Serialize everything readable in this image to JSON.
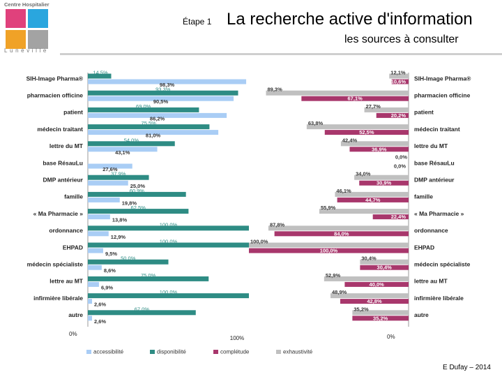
{
  "header": {
    "logo_title": "Centre Hospitalier",
    "logo_town": "Lunéville",
    "step_label": "Étape 1",
    "title": "La recherche active d'information",
    "subtitle": "les sources à consulter"
  },
  "colors": {
    "accessibilite": "#a9cdf5",
    "disponibilite": "#2e8c84",
    "completude": "#a8376c",
    "exhaustivite": "#c0c0c0",
    "logo_pink": "#e0417c",
    "logo_blue": "#2aa6de",
    "logo_orange": "#f0a227",
    "logo_gray": "#a3a3a3"
  },
  "chart_data": {
    "type": "bar",
    "orientation": "horizontal",
    "categories": [
      "SIH-Image Pharma®",
      "pharmacien officine",
      "patient",
      "médecin traitant",
      "lettre du MT",
      "base RésauLu",
      "DMP antérieur",
      "famille",
      "« Ma Pharmacie »",
      "ordonnance",
      "EHPAD",
      "médecin spécialiste",
      "lettre au MT",
      "infirmière libérale",
      "autre"
    ],
    "left_panel": {
      "axis_min_label": "0%",
      "axis_max_label": "100%",
      "xlim": [
        0,
        100
      ],
      "series": [
        {
          "name": "disponibilité",
          "key": "disponibilite",
          "values": [
            14.5,
            93.3,
            69.0,
            75.5,
            54.0,
            null,
            37.9,
            60.9,
            62.5,
            100.0,
            100.0,
            50.0,
            75.0,
            100.0,
            67.0
          ],
          "labels": [
            "14,5%",
            "93,3%",
            "69,0%",
            "75,5%",
            "54,0%",
            "",
            "37,9%",
            "60,9%",
            "62,5%",
            "100,0%",
            "100,0%",
            "50,0%",
            "75,0%",
            "100,0%",
            "67,0%"
          ]
        },
        {
          "name": "accessibilité",
          "key": "accessibilite",
          "values": [
            98.3,
            90.5,
            86.2,
            81.0,
            43.1,
            27.6,
            25.0,
            19.8,
            13.8,
            12.9,
            9.5,
            8.6,
            6.9,
            2.6,
            2.6
          ],
          "labels": [
            "98,3%",
            "90,5%",
            "86,2%",
            "81,0%",
            "43,1%",
            "27,6%",
            "25,0%",
            "19,8%",
            "13,8%",
            "12,9%",
            "9,5%",
            "8,6%",
            "6,9%",
            "2,6%",
            "2,6%"
          ]
        }
      ]
    },
    "right_panel": {
      "axis_max_label": "100,0%",
      "axis_min_label": "0%",
      "direction": "right-to-left",
      "xlim": [
        0,
        100
      ],
      "series": [
        {
          "name": "exhaustivité",
          "key": "exhaustivite",
          "values": [
            12.1,
            89.3,
            27.7,
            63.8,
            42.4,
            0.0,
            34.0,
            46.1,
            55.9,
            87.8,
            100.0,
            30.4,
            52.9,
            48.9,
            35.2
          ],
          "labels": [
            "12,1%",
            "89,3%",
            "27,7%",
            "63,8%",
            "42,4%",
            "0,0%",
            "34,0%",
            "46,1%",
            "55,9%",
            "87,8%",
            "100,0%",
            "30,4%",
            "52,9%",
            "48,9%",
            "35,2%"
          ]
        },
        {
          "name": "complétude",
          "key": "completude",
          "values": [
            10.6,
            67.1,
            20.2,
            52.5,
            36.9,
            0.0,
            30.9,
            44.7,
            22.4,
            84.0,
            100.0,
            30.4,
            40.0,
            42.8,
            35.2
          ],
          "labels": [
            "10,6%",
            "67,1%",
            "20,2%",
            "52,5%",
            "36,9%",
            "0,0%",
            "30,9%",
            "44,7%",
            "22,4%",
            "84,0%",
            "100,0%",
            "30,4%",
            "40,0%",
            "42,8%",
            "35,2%"
          ]
        }
      ]
    },
    "legend": {
      "position": "bottom",
      "entries": [
        {
          "label": "accessibilité",
          "key": "accessibilite"
        },
        {
          "label": "disponibilité",
          "key": "disponibilite"
        },
        {
          "label": "complétude",
          "key": "completude"
        },
        {
          "label": "exhaustivité",
          "key": "exhaustivite"
        }
      ]
    }
  },
  "footer": {
    "credit": "E Dufay – 2014"
  }
}
